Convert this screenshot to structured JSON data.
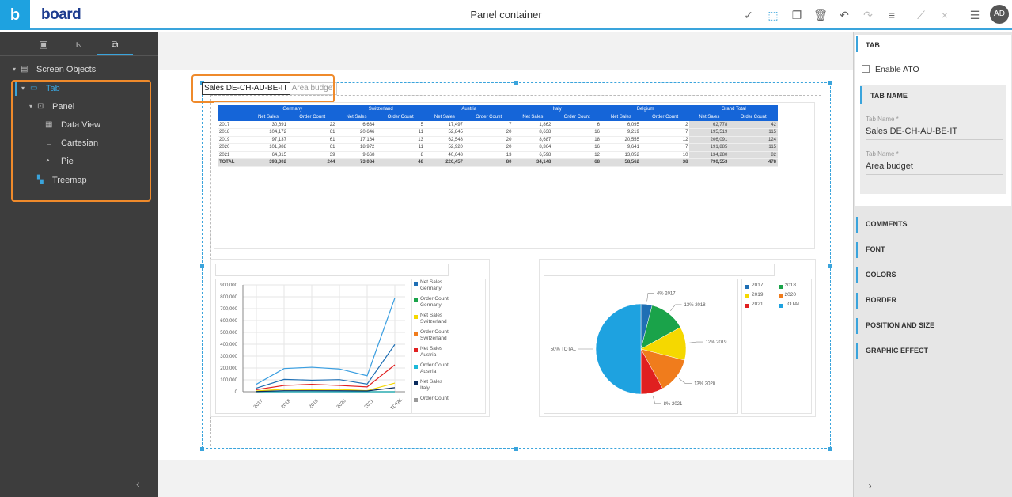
{
  "app": {
    "brand_letter": "b",
    "logo_text": "board",
    "title": "Panel container",
    "user_initials": "AD"
  },
  "toolbar": {
    "icons": [
      "check-icon",
      "select-icon",
      "copy-icon",
      "delete-icon",
      "undo-icon",
      "redo-icon",
      "align-icon",
      "layout-icon",
      "close-icon",
      "menu-icon"
    ]
  },
  "left_panel": {
    "tree": {
      "root": "Screen Objects",
      "tab": "Tab",
      "panel": "Panel",
      "data_view": "Data View",
      "cartesian": "Cartesian",
      "pie": "Pie",
      "treemap": "Treemap"
    }
  },
  "canvas": {
    "tabs": [
      "Sales DE-CH-AU-BE-IT",
      "Area budget"
    ]
  },
  "dataview": {
    "countries": [
      "Germany",
      "Switzerland",
      "Austria",
      "Italy",
      "Belgium",
      "Grand Total"
    ],
    "subheaders": [
      "Net Sales",
      "Order Count"
    ],
    "rows": [
      {
        "label": "2017",
        "values": [
          "30,691",
          "22",
          "6,634",
          "5",
          "17,497",
          "7",
          "1,862",
          "6",
          "6,095",
          "2",
          "62,778",
          "42"
        ]
      },
      {
        "label": "2018",
        "values": [
          "104,172",
          "61",
          "20,646",
          "11",
          "52,845",
          "20",
          "8,638",
          "16",
          "9,219",
          "7",
          "195,519",
          "115"
        ]
      },
      {
        "label": "2019",
        "values": [
          "97,137",
          "61",
          "17,164",
          "13",
          "62,548",
          "20",
          "8,687",
          "18",
          "20,555",
          "12",
          "206,091",
          "124"
        ]
      },
      {
        "label": "2020",
        "values": [
          "101,988",
          "61",
          "18,972",
          "11",
          "52,920",
          "20",
          "8,364",
          "16",
          "9,641",
          "7",
          "191,885",
          "115"
        ]
      },
      {
        "label": "2021",
        "values": [
          "64,315",
          "39",
          "9,668",
          "8",
          "40,648",
          "13",
          "6,598",
          "12",
          "13,052",
          "10",
          "134,280",
          "82"
        ]
      },
      {
        "label": "TOTAL",
        "values": [
          "398,302",
          "244",
          "73,084",
          "48",
          "226,457",
          "80",
          "34,148",
          "68",
          "58,562",
          "38",
          "790,553",
          "478"
        ]
      }
    ]
  },
  "chart_data": [
    {
      "type": "line",
      "categories": [
        "2017",
        "2018",
        "2019",
        "2020",
        "2021",
        "TOTAL"
      ],
      "y_ticks": [
        "0",
        "100,000",
        "200,000",
        "300,000",
        "400,000",
        "500,000",
        "600,000",
        "700,000",
        "800,000",
        "900,000"
      ],
      "ylim": [
        0,
        900000
      ],
      "series": [
        {
          "name": "Net Sales Germany",
          "color": "#1f6fb4",
          "values": [
            30691,
            104172,
            97137,
            101988,
            64315,
            398302
          ]
        },
        {
          "name": "Order Count Germany",
          "color": "#1aa34a",
          "values": [
            22,
            61,
            61,
            61,
            39,
            244
          ]
        },
        {
          "name": "Net Sales Switzerland",
          "color": "#f5d800",
          "values": [
            6634,
            20646,
            17164,
            18972,
            9668,
            73084
          ]
        },
        {
          "name": "Order Count Switzerland",
          "color": "#f07c1c",
          "values": [
            5,
            11,
            13,
            11,
            8,
            48
          ]
        },
        {
          "name": "Net Sales Austria",
          "color": "#e02020",
          "values": [
            17497,
            52845,
            62548,
            52920,
            40648,
            226457
          ]
        },
        {
          "name": "Order Count Austria",
          "color": "#1cb8d8",
          "values": [
            7,
            20,
            20,
            20,
            13,
            80
          ]
        },
        {
          "name": "Net Sales Italy",
          "color": "#0a2a5c",
          "values": [
            1862,
            8638,
            8687,
            8364,
            6598,
            34148
          ]
        },
        {
          "name": "Grand Total",
          "color": "#3a9ee0",
          "values": [
            62778,
            195519,
            206091,
            191885,
            134280,
            790553
          ]
        }
      ],
      "legend_labels": [
        {
          "l1": "Net Sales",
          "l2": "Germany",
          "color": "#1f6fb4"
        },
        {
          "l1": "Order Count",
          "l2": "Germany",
          "color": "#1aa34a"
        },
        {
          "l1": "Net Sales",
          "l2": "Switzerland",
          "color": "#f5d800"
        },
        {
          "l1": "Order Count",
          "l2": "Switzerland",
          "color": "#f07c1c"
        },
        {
          "l1": "Net Sales",
          "l2": "Austria",
          "color": "#e02020"
        },
        {
          "l1": "Order Count",
          "l2": "Austria",
          "color": "#1cb8d8"
        },
        {
          "l1": "Net Sales",
          "l2": "Italy",
          "color": "#0a2a5c"
        },
        {
          "l1": "Order Count",
          "l2": "",
          "color": "#999"
        }
      ]
    },
    {
      "type": "pie",
      "slices": [
        {
          "label": "2017",
          "value": 4,
          "text": "4% 2017",
          "color": "#1f6fb4"
        },
        {
          "label": "2018",
          "value": 13,
          "text": "13% 2018",
          "color": "#1aa34a"
        },
        {
          "label": "2019",
          "value": 12,
          "text": "12% 2019",
          "color": "#f5d800"
        },
        {
          "label": "2020",
          "value": 13,
          "text": "13% 2020",
          "color": "#f07c1c"
        },
        {
          "label": "2021",
          "value": 8,
          "text": "8% 2021",
          "color": "#e02020"
        },
        {
          "label": "TOTAL",
          "value": 50,
          "text": "50% TOTAL",
          "color": "#1ea2e0"
        }
      ]
    }
  ],
  "right_panel": {
    "header": "TAB",
    "enable_ato": "Enable ATO",
    "tab_name_section": "TAB NAME",
    "fields": [
      {
        "label": "Tab Name *",
        "value": "Sales DE-CH-AU-BE-IT"
      },
      {
        "label": "Tab Name *",
        "value": "Area budget"
      }
    ],
    "sections": [
      "COMMENTS",
      "FONT",
      "COLORS",
      "BORDER",
      "POSITION AND SIZE",
      "GRAPHIC EFFECT"
    ]
  }
}
